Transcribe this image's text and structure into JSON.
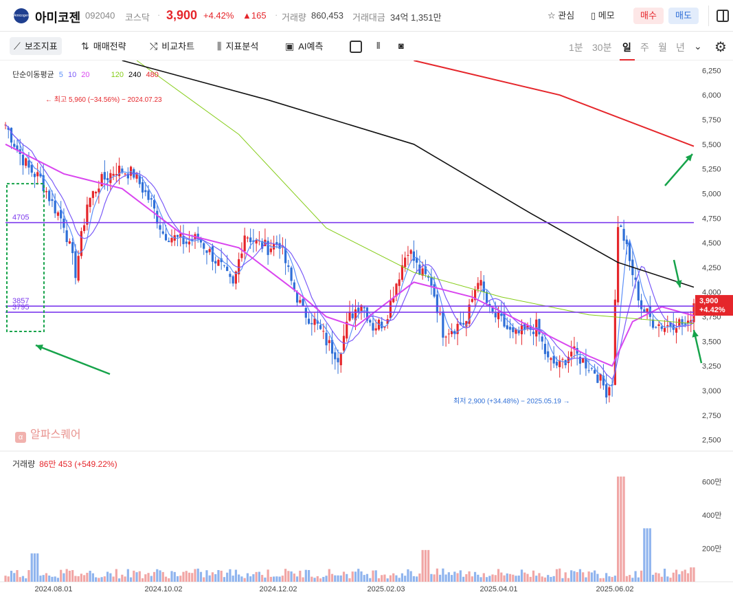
{
  "header": {
    "logo_text": "Amicogen",
    "name": "아미코젠",
    "code": "092040",
    "market": "코스닥",
    "price": "3,900",
    "change_pct": "+4.42%",
    "change": "▲165",
    "volume_label": "거래량",
    "volume": "860,453",
    "amount_label": "거래대금",
    "amount": "34억 1,351만",
    "fav_label": "관심",
    "memo_label": "메모",
    "buy_label": "매수",
    "sell_label": "매도"
  },
  "toolbar": {
    "indicator_label": "보조지표",
    "strategy_label": "매매전략",
    "compare_label": "비교차트",
    "analysis_label": "지표분석",
    "ai_label": "AI예측",
    "periods": [
      "1분",
      "30분",
      "일",
      "주",
      "월",
      "년"
    ],
    "active_period": "일"
  },
  "indicator": {
    "name": "단순이동평균",
    "periods": [
      "5",
      "10",
      "20",
      "120",
      "240",
      "480"
    ],
    "colors": [
      "#5b8ff9",
      "#7a5af8",
      "#d946ef",
      "#84cc16",
      "#000000",
      "#e5262b"
    ]
  },
  "watermark": "알파스퀘어",
  "volume_legend": {
    "label": "거래량",
    "value": "86만 453 (+549.22%)"
  },
  "chart_data": {
    "type": "candlestick",
    "price_axis": {
      "min": 2500,
      "max": 6250,
      "ticks": [
        "6,250",
        "6,000",
        "5,750",
        "5,500",
        "5,250",
        "5,000",
        "4,750",
        "4,500",
        "4,250",
        "4,000",
        "3,750",
        "3,500",
        "3,250",
        "3,000",
        "2,750",
        "2,500"
      ]
    },
    "volume_axis": {
      "ticks": [
        "600만",
        "400만",
        "200만"
      ]
    },
    "x_labels": [
      "2024.08.01",
      "2024.10.02",
      "2024.12.02",
      "2025.02.03",
      "2025.04.01",
      "2025.06.02"
    ],
    "annotations": {
      "high": "최고 5,960 (−34.56%) − 2024.07.23",
      "low": "최저 2,900 (+34.48%) − 2025.05.19"
    },
    "horizontal_lines": [
      {
        "label": "4705",
        "value": 4705
      },
      {
        "label": "3857",
        "value": 3857
      },
      {
        "label": "3795",
        "value": 3795
      }
    ],
    "last_price": {
      "value": "3,900",
      "change": "+4.42%"
    },
    "approx_price_path": [
      [
        0,
        5700
      ],
      [
        4,
        5450
      ],
      [
        8,
        5250
      ],
      [
        12,
        5150
      ],
      [
        16,
        4900
      ],
      [
        20,
        4700
      ],
      [
        24,
        4200
      ],
      [
        28,
        4900
      ],
      [
        32,
        5100
      ],
      [
        38,
        5250
      ],
      [
        44,
        5200
      ],
      [
        50,
        4900
      ],
      [
        54,
        4600
      ],
      [
        58,
        4550
      ],
      [
        62,
        4500
      ],
      [
        66,
        4550
      ],
      [
        70,
        4400
      ],
      [
        74,
        4250
      ],
      [
        78,
        4050
      ],
      [
        82,
        4600
      ],
      [
        86,
        4500
      ],
      [
        90,
        4450
      ],
      [
        94,
        4500
      ],
      [
        98,
        4100
      ],
      [
        102,
        3800
      ],
      [
        106,
        3700
      ],
      [
        110,
        3500
      ],
      [
        114,
        3350
      ],
      [
        118,
        3750
      ],
      [
        122,
        3900
      ],
      [
        126,
        3650
      ],
      [
        130,
        3700
      ],
      [
        134,
        4100
      ],
      [
        138,
        4450
      ],
      [
        142,
        4200
      ],
      [
        146,
        4100
      ],
      [
        150,
        3600
      ],
      [
        154,
        3650
      ],
      [
        158,
        3700
      ],
      [
        162,
        4150
      ],
      [
        166,
        3800
      ],
      [
        170,
        3700
      ],
      [
        174,
        3550
      ],
      [
        178,
        3600
      ],
      [
        182,
        3650
      ],
      [
        186,
        3300
      ],
      [
        190,
        3250
      ],
      [
        194,
        3400
      ],
      [
        198,
        3300
      ],
      [
        202,
        3200
      ],
      [
        206,
        3000
      ],
      [
        208,
        3100
      ],
      [
        210,
        4700
      ],
      [
        212,
        4550
      ],
      [
        214,
        4300
      ],
      [
        218,
        3850
      ],
      [
        222,
        3700
      ],
      [
        226,
        3650
      ],
      [
        230,
        3700
      ],
      [
        234,
        3650
      ],
      [
        236,
        3900
      ]
    ],
    "ma_paths": {
      "ma20": [
        [
          0,
          5500
        ],
        [
          20,
          5200
        ],
        [
          40,
          5050
        ],
        [
          60,
          4600
        ],
        [
          80,
          4450
        ],
        [
          100,
          4000
        ],
        [
          110,
          3750
        ],
        [
          120,
          3650
        ],
        [
          140,
          4100
        ],
        [
          160,
          3950
        ],
        [
          180,
          3650
        ],
        [
          200,
          3350
        ],
        [
          208,
          3250
        ],
        [
          215,
          3700
        ],
        [
          225,
          3850
        ],
        [
          236,
          3760
        ]
      ],
      "ma120": [
        [
          45,
          6350
        ],
        [
          80,
          5600
        ],
        [
          110,
          4650
        ],
        [
          140,
          4200
        ],
        [
          170,
          3950
        ],
        [
          200,
          3770
        ],
        [
          236,
          3680
        ]
      ],
      "ma240": [
        [
          40,
          6350
        ],
        [
          90,
          5950
        ],
        [
          140,
          5500
        ],
        [
          180,
          4800
        ],
        [
          210,
          4300
        ],
        [
          236,
          4050
        ]
      ],
      "ma480": [
        [
          140,
          6350
        ],
        [
          190,
          6000
        ],
        [
          236,
          5480
        ]
      ]
    },
    "volume_spikes": [
      {
        "x": 10,
        "value": 1.7,
        "color": "blue"
      },
      {
        "x": 144,
        "value": 1.9,
        "color": "red"
      },
      {
        "x": 211,
        "value": 6.3,
        "color": "red"
      },
      {
        "x": 220,
        "value": 3.2,
        "color": "blue"
      },
      {
        "x": 236,
        "value": 0.86,
        "color": "red"
      }
    ]
  }
}
